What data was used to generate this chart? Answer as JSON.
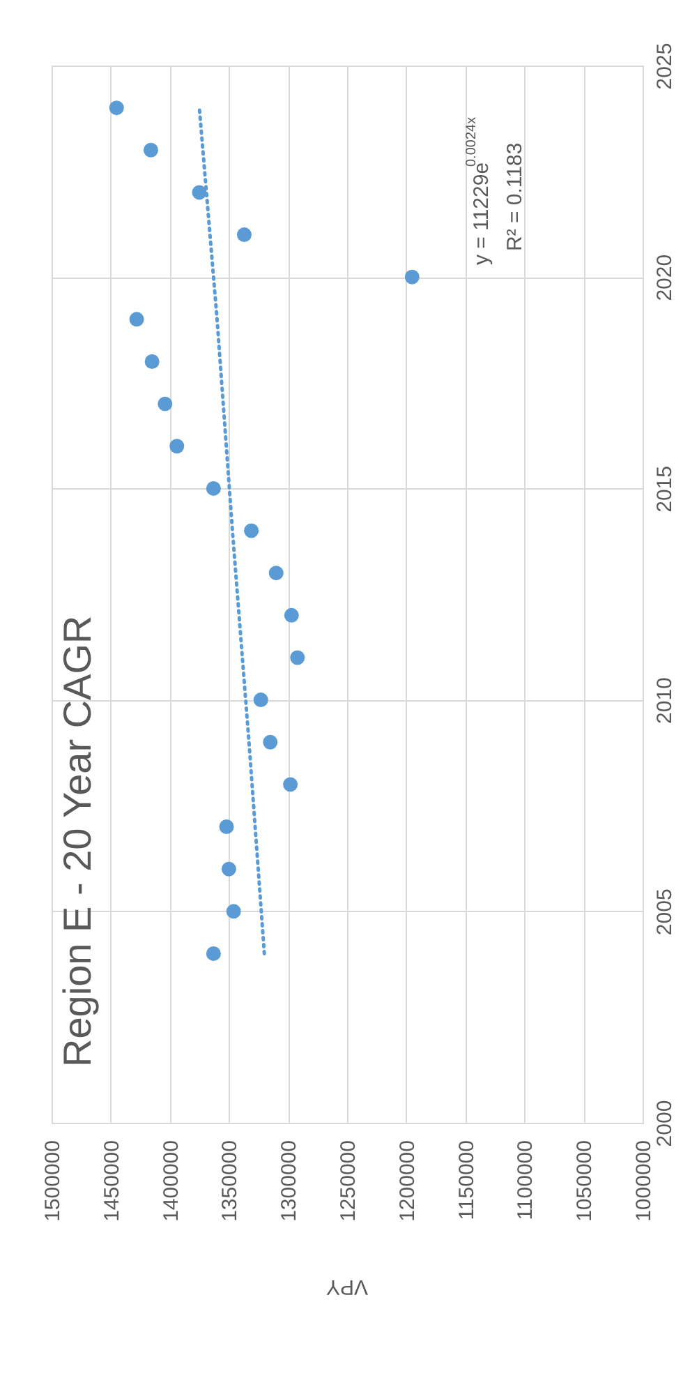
{
  "chart_data": {
    "type": "scatter",
    "title": "Region E - 20 Year CAGR",
    "xlabel": "VPY",
    "xlim": [
      1500000,
      1000000
    ],
    "xticks": [
      1500000,
      1450000,
      1400000,
      1350000,
      1300000,
      1250000,
      1200000,
      1150000,
      1100000,
      1050000,
      1000000
    ],
    "ylim": [
      2000,
      2025
    ],
    "yticks": [
      2000,
      2005,
      2010,
      2015,
      2020,
      2025
    ],
    "grid": true,
    "marker": "circle",
    "series": [
      {
        "color": "#5b9bd5",
        "x": [
          1363000,
          1346000,
          1350000,
          1352000,
          1298000,
          1315000,
          1323000,
          1292000,
          1297000,
          1310000,
          1331000,
          1363000,
          1394000,
          1404000,
          1415000,
          1428000,
          1195000,
          1337000,
          1375000,
          1416000,
          1445000
        ],
        "values": [
          2004,
          2005,
          2006,
          2007,
          2008,
          2009,
          2010,
          2011,
          2012,
          2013,
          2014,
          2015,
          2016,
          2017,
          2018,
          2019,
          2020,
          2021,
          2022,
          2023,
          2024
        ]
      },
      {
        "type": "line",
        "color": "#5b9bd5",
        "line_style": "dotted",
        "marker": "none",
        "x": [
          1320000,
          1333000,
          1347000,
          1360000,
          1375000
        ],
        "values": [
          2004,
          2009,
          2014,
          2019,
          2024
        ]
      }
    ],
    "annotations": [
      "y = 11229e$^{0.0024x}$",
      "R² = 0.1183"
    ]
  }
}
